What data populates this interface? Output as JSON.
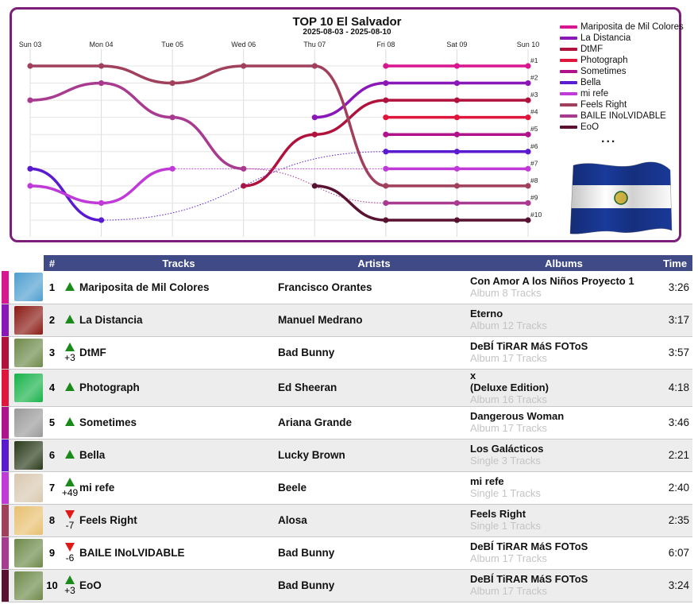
{
  "chart_data": {
    "type": "line",
    "title": "TOP 10 El Salvador",
    "subtitle": "2025-08-03 - 2025-08-10",
    "x": [
      "Sun 03",
      "Mon 04",
      "Tue 05",
      "Wed 06",
      "Thu 07",
      "Fri 08",
      "Sat 09",
      "Sun 10"
    ],
    "y_tick_labels": [
      "#1",
      "#2",
      "#3",
      "#4",
      "#5",
      "#6",
      "#7",
      "#8",
      "#9",
      "#10"
    ],
    "ylim": [
      1,
      10
    ],
    "grid": true,
    "legend": "top-right",
    "legend_more": "...",
    "series": [
      {
        "name": "Mariposita de Mil Colores",
        "color": "#d8168f",
        "values": [
          null,
          null,
          null,
          null,
          null,
          1,
          1,
          1
        ]
      },
      {
        "name": "La Distancia",
        "color": "#8a18b8",
        "values": [
          null,
          null,
          null,
          null,
          4,
          2,
          2,
          2
        ]
      },
      {
        "name": "DtMF",
        "color": "#b0123c",
        "values": [
          null,
          null,
          null,
          8,
          5,
          3,
          3,
          3
        ]
      },
      {
        "name": "Photograph",
        "color": "#e0163c",
        "values": [
          null,
          null,
          null,
          null,
          null,
          4,
          4,
          4
        ]
      },
      {
        "name": "Sometimes",
        "color": "#b0128c",
        "values": [
          null,
          null,
          null,
          null,
          null,
          5,
          5,
          5
        ]
      },
      {
        "name": "Bella",
        "color": "#5a1ad0",
        "values": [
          7,
          10,
          null,
          null,
          null,
          6,
          6,
          6
        ]
      },
      {
        "name": "mi refe",
        "color": "#c03ad8",
        "values": [
          8,
          9,
          7,
          null,
          null,
          7,
          7,
          7
        ]
      },
      {
        "name": "Feels Right",
        "color": "#a0405c",
        "values": [
          1,
          1,
          2,
          1,
          1,
          8,
          8,
          8
        ]
      },
      {
        "name": "BAILE INoLVIDABLE",
        "color": "#a83a90",
        "values": [
          3,
          2,
          4,
          7,
          null,
          9,
          9,
          9
        ]
      },
      {
        "name": "EoO",
        "color": "#5a1232",
        "values": [
          null,
          null,
          null,
          null,
          8,
          10,
          10,
          10
        ]
      }
    ]
  },
  "table": {
    "headers": {
      "num": "#",
      "tracks": "Tracks",
      "artists": "Artists",
      "albums": "Albums",
      "time": "Time"
    },
    "rows": [
      {
        "rank": "1",
        "dir": "up",
        "change": "",
        "track": "Mariposita de Mil Colores",
        "artist": "Francisco Orantes",
        "album": "Con Amor A los Niños Proyecto 1",
        "sub": "Album 8 Tracks",
        "time": "3:26",
        "color": "#d8168f",
        "cover": "#4f9fd0"
      },
      {
        "rank": "2",
        "dir": "up",
        "change": "",
        "track": "La Distancia",
        "artist": "Manuel Medrano",
        "album": "Eterno",
        "sub": "Album 12 Tracks",
        "time": "3:17",
        "color": "#8a18b8",
        "cover": "#8a1a14"
      },
      {
        "rank": "3",
        "dir": "up",
        "change": "+3",
        "track": "DtMF",
        "artist": "Bad Bunny",
        "album": "DeBÍ TiRAR MáS FOToS",
        "sub": "Album 17 Tracks",
        "time": "3:57",
        "color": "#b0123c",
        "cover": "#6d8a4a"
      },
      {
        "rank": "4",
        "dir": "up",
        "change": "",
        "track": "Photograph",
        "artist": "Ed Sheeran",
        "album": "x\n(Deluxe Edition)",
        "sub": "Album 16 Tracks",
        "time": "4:18",
        "color": "#e0163c",
        "cover": "#18b24a"
      },
      {
        "rank": "5",
        "dir": "up",
        "change": "",
        "track": "Sometimes",
        "artist": "Ariana Grande",
        "album": "Dangerous Woman",
        "sub": "Album 17 Tracks",
        "time": "3:46",
        "color": "#b0128c",
        "cover": "#9a9a9a"
      },
      {
        "rank": "6",
        "dir": "up",
        "change": "",
        "track": "Bella",
        "artist": "Lucky Brown",
        "album": "Los Galácticos",
        "sub": "Single 3 Tracks",
        "time": "2:21",
        "color": "#5a1ad0",
        "cover": "#2a3a1a"
      },
      {
        "rank": "7",
        "dir": "up",
        "change": "+49",
        "track": "mi refe",
        "artist": "Beele",
        "album": "mi refe",
        "sub": "Single 1 Tracks",
        "time": "2:40",
        "color": "#c03ad8",
        "cover": "#d8c8b0"
      },
      {
        "rank": "8",
        "dir": "down",
        "change": "-7",
        "track": "Feels Right",
        "artist": "Alosa",
        "album": "Feels Right",
        "sub": "Single 1 Tracks",
        "time": "2:35",
        "color": "#a0405c",
        "cover": "#e8c070"
      },
      {
        "rank": "9",
        "dir": "down",
        "change": "-6",
        "track": "BAILE INoLVIDABLE",
        "artist": "Bad Bunny",
        "album": "DeBÍ TiRAR MáS FOToS",
        "sub": "Album 17 Tracks",
        "time": "6:07",
        "color": "#a83a90",
        "cover": "#6d8a4a"
      },
      {
        "rank": "10",
        "dir": "up",
        "change": "+3",
        "track": "EoO",
        "artist": "Bad Bunny",
        "album": "DeBÍ TiRAR MáS FOToS",
        "sub": "Album 17 Tracks",
        "time": "3:24",
        "color": "#5a1232",
        "cover": "#6d8a4a"
      }
    ]
  }
}
